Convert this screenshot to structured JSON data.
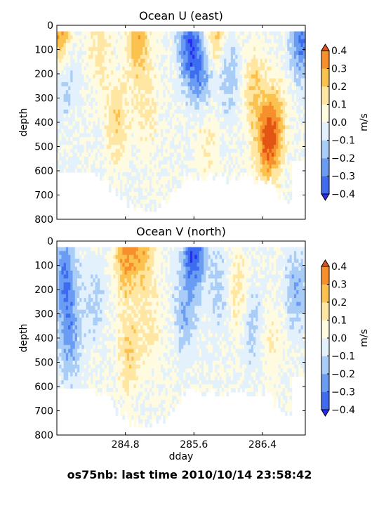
{
  "figure_title": "os75nb: last time 2010/10/14 23:58:42",
  "colorbar": {
    "label": "m/s",
    "ticks": [
      "0.4",
      "0.3",
      "0.2",
      "0.1",
      "0.0",
      "−0.1",
      "−0.2",
      "−0.3",
      "−0.4"
    ],
    "levels": [
      -0.4,
      -0.3,
      -0.2,
      -0.1,
      0.0,
      0.1,
      0.2,
      0.3,
      0.4
    ],
    "colors": [
      "#2b2bf5",
      "#3d6cf0",
      "#6b9cf3",
      "#a9cdf7",
      "#e2f1fb",
      "#fffbe0",
      "#ffe7a3",
      "#fbc24f",
      "#f7902c",
      "#e35513"
    ]
  },
  "chart_data": [
    {
      "type": "heatmap",
      "title": "Ocean U (east)",
      "xlabel": "",
      "ylabel": "depth",
      "xlim": [
        284.0,
        286.9
      ],
      "ylim": [
        800,
        0
      ],
      "x_ticks": [
        284.8,
        285.6,
        286.4
      ],
      "y_ticks": [
        "0",
        "100",
        "200",
        "300",
        "400",
        "500",
        "600",
        "700",
        "800"
      ],
      "units": "m/s",
      "features": [
        {
          "x": 284.04,
          "depth": 25,
          "value": 0.35
        },
        {
          "x": 284.5,
          "depth": 80,
          "value": 0.15
        },
        {
          "x": 284.1,
          "depth": 200,
          "value": -0.15
        },
        {
          "x": 284.95,
          "depth": 60,
          "value": 0.28
        },
        {
          "x": 284.7,
          "depth": 400,
          "value": 0.18
        },
        {
          "x": 285.05,
          "depth": 350,
          "value": 0.12
        },
        {
          "x": 285.55,
          "depth": 80,
          "value": -0.35
        },
        {
          "x": 285.7,
          "depth": 200,
          "value": -0.25
        },
        {
          "x": 285.75,
          "depth": 450,
          "value": 0.12
        },
        {
          "x": 285.85,
          "depth": 30,
          "value": 0.25
        },
        {
          "x": 286.0,
          "depth": 200,
          "value": -0.18
        },
        {
          "x": 286.3,
          "depth": 280,
          "value": 0.2
        },
        {
          "x": 286.45,
          "depth": 500,
          "value": 0.33
        },
        {
          "x": 286.55,
          "depth": 400,
          "value": 0.25
        },
        {
          "x": 286.85,
          "depth": 60,
          "value": -0.3
        }
      ]
    },
    {
      "type": "heatmap",
      "title": "Ocean V (north)",
      "xlabel": "dday",
      "ylabel": "depth",
      "xlim": [
        284.0,
        286.9
      ],
      "ylim": [
        800,
        0
      ],
      "x_ticks": [
        284.8,
        285.6,
        286.4
      ],
      "y_ticks": [
        "0",
        "100",
        "200",
        "300",
        "400",
        "500",
        "600",
        "700",
        "800"
      ],
      "units": "m/s",
      "features": [
        {
          "x": 284.1,
          "depth": 150,
          "value": -0.3
        },
        {
          "x": 284.15,
          "depth": 400,
          "value": -0.22
        },
        {
          "x": 284.45,
          "depth": 250,
          "value": -0.12
        },
        {
          "x": 284.8,
          "depth": 60,
          "value": 0.3
        },
        {
          "x": 285.0,
          "depth": 40,
          "value": 0.25
        },
        {
          "x": 284.85,
          "depth": 450,
          "value": 0.2
        },
        {
          "x": 285.1,
          "depth": 350,
          "value": 0.12
        },
        {
          "x": 285.6,
          "depth": 30,
          "value": -0.4
        },
        {
          "x": 285.5,
          "depth": 300,
          "value": -0.18
        },
        {
          "x": 285.9,
          "depth": 200,
          "value": -0.15
        },
        {
          "x": 286.1,
          "depth": 200,
          "value": 0.15
        },
        {
          "x": 286.3,
          "depth": 350,
          "value": -0.15
        },
        {
          "x": 286.5,
          "depth": 400,
          "value": 0.1
        },
        {
          "x": 286.8,
          "depth": 200,
          "value": -0.2
        }
      ]
    }
  ]
}
